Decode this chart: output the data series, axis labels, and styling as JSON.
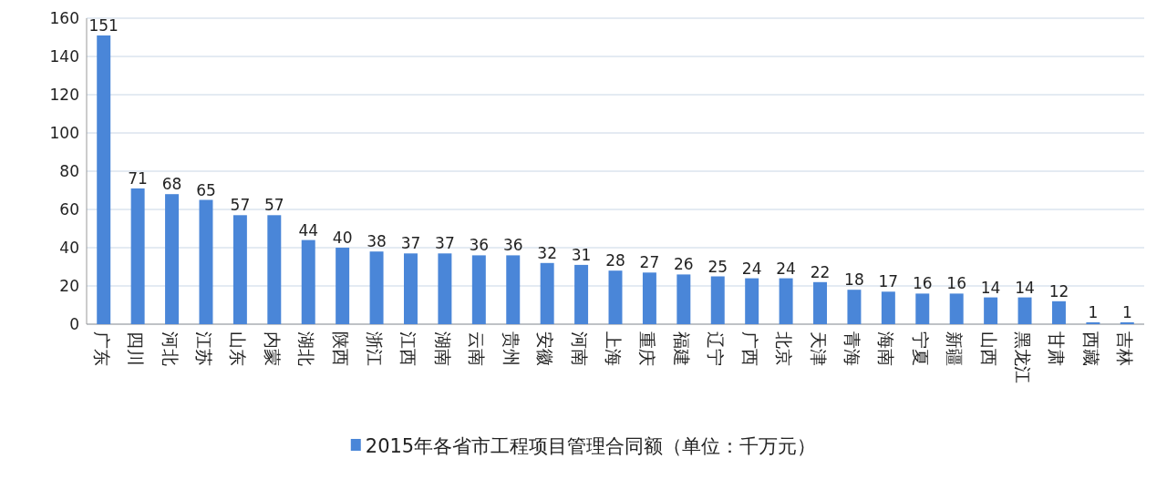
{
  "chart_data": {
    "type": "bar",
    "categories": [
      "广东",
      "四川",
      "河北",
      "江苏",
      "山东",
      "内蒙",
      "湖北",
      "陕西",
      "浙江",
      "江西",
      "湖南",
      "云南",
      "贵州",
      "安徽",
      "河南",
      "上海",
      "重庆",
      "福建",
      "辽宁",
      "广西",
      "北京",
      "天津",
      "青海",
      "海南",
      "宁夏",
      "新疆",
      "山西",
      "黑龙江",
      "甘肃",
      "西藏",
      "吉林"
    ],
    "series": [
      {
        "name": "2015年各省市工程项目管理合同额（单位：千万元）",
        "color": "#4a86d8",
        "values": [
          151,
          71,
          68,
          65,
          57,
          57,
          44,
          40,
          38,
          37,
          37,
          36,
          36,
          32,
          31,
          28,
          27,
          26,
          25,
          24,
          24,
          22,
          18,
          17,
          16,
          16,
          14,
          14,
          12,
          1,
          1
        ]
      }
    ],
    "ylim": [
      0,
      160
    ],
    "yticks": [
      0,
      20,
      40,
      60,
      80,
      100,
      120,
      140,
      160
    ],
    "grid": "y",
    "legend": "bottom",
    "data_labels": true
  }
}
